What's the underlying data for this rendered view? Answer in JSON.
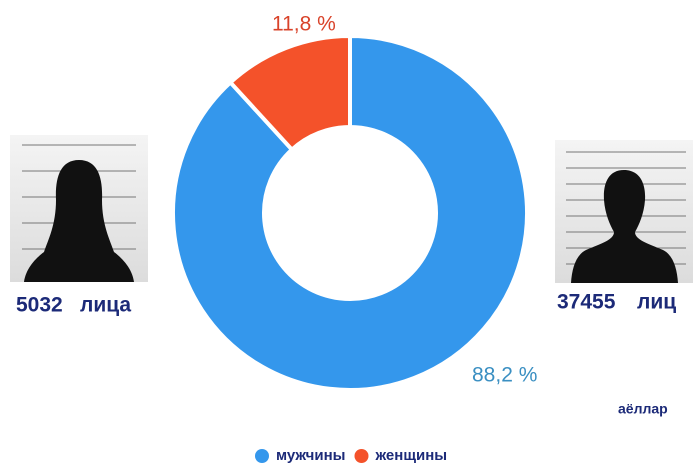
{
  "chart_data": {
    "type": "pie",
    "donut": true,
    "categories": [
      "мужчины",
      "женщины"
    ],
    "values": [
      88.2,
      11.8
    ],
    "value_labels": [
      "88,2 %",
      "11,8 %"
    ],
    "colors": [
      "#3497ec",
      "#f4522a"
    ],
    "label_colors": [
      "#3a8fc2",
      "#d9432a"
    ],
    "counts": [
      {
        "value": 5032,
        "unit": "лица"
      },
      {
        "value": 37455,
        "unit": "лиц"
      }
    ],
    "note": "аёллар"
  }
}
